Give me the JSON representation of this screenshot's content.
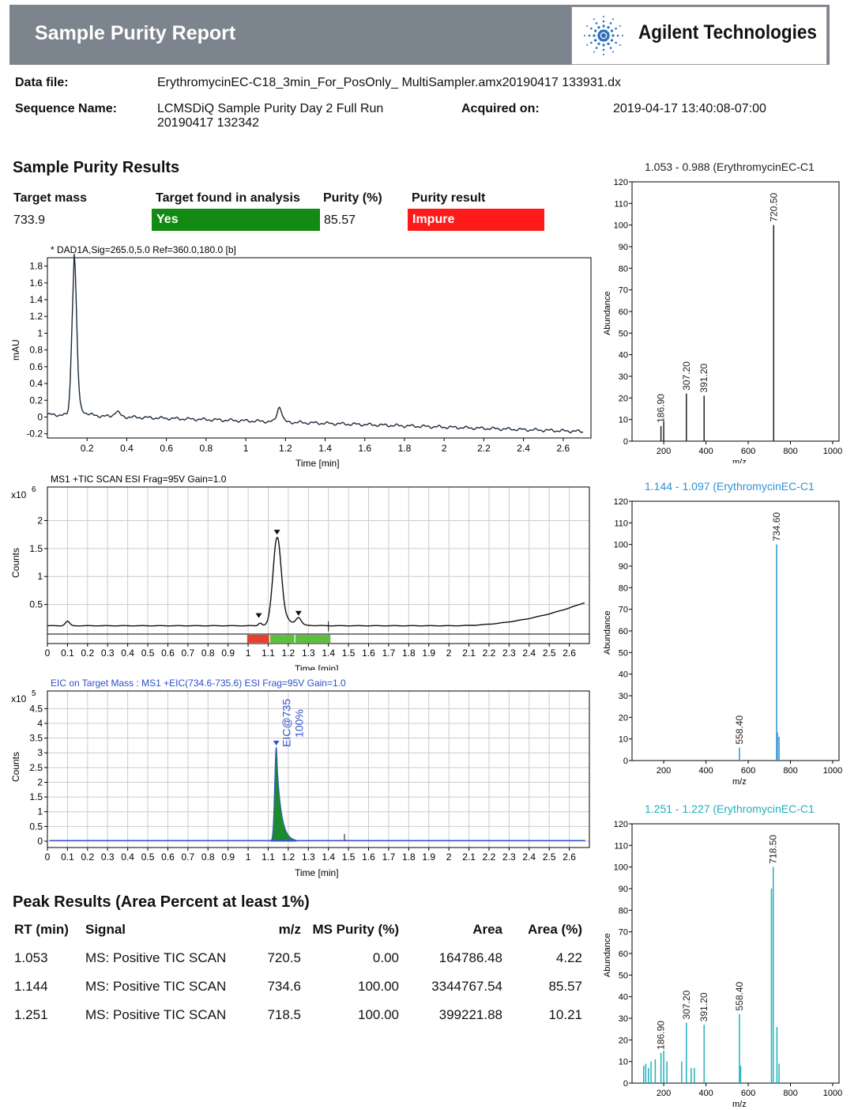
{
  "header": {
    "title": "Sample Purity Report",
    "brand": "Agilent Technologies",
    "brand_color": "#2a6ebb"
  },
  "info": {
    "data_file_label": "Data file:",
    "data_file": "ErythromycinEC-C18_3min_For_PosOnly_ MultiSampler.amx20190417 133931.dx",
    "sequence_label": "Sequence Name:",
    "sequence_line1": "LCMSDiQ Sample Purity Day 2 Full Run",
    "sequence_line2": "20190417 132342",
    "acquired_label": "Acquired on:",
    "acquired": "2019-04-17 13:40:08-07:00"
  },
  "results": {
    "heading": "Sample Purity Results",
    "target_mass_label": "Target mass",
    "target_mass": "733.9",
    "found_label": "Target found in analysis",
    "found": "Yes",
    "found_color": "#138a13",
    "purity_label": "Purity (%)",
    "purity": "85.57",
    "result_label": "Purity result",
    "result": "Impure",
    "result_color": "#ff1a1a"
  },
  "chromatograms": {
    "dad": {
      "title": "* DAD1A,Sig=265.0,5.0  Ref=360.0,180.0 [b]",
      "ylabel": "mAU",
      "xlabel": "Time [min]",
      "yticks": [
        "1.8",
        "1.6",
        "1.4",
        "1.2",
        "1",
        "0.8",
        "0.6",
        "0.4",
        "0.2",
        "0",
        "-0.2"
      ],
      "xticks": [
        "0.2",
        "0.4",
        "0.6",
        "0.8",
        "1",
        "1.2",
        "1.4",
        "1.6",
        "1.8",
        "2",
        "2.2",
        "2.4",
        "2.6"
      ]
    },
    "tic": {
      "title": "MS1 +TIC SCAN ESI Frag=95V Gain=1.0",
      "multiplier": "x10",
      "exponent": "6",
      "ylabel": "Counts",
      "xlabel": "Time [min]",
      "yticks": [
        "2",
        "1.5",
        "1",
        "0.5"
      ],
      "xticks": [
        "0",
        "0.1",
        "0.2",
        "0.3",
        "0.4",
        "0.5",
        "0.6",
        "0.7",
        "0.8",
        "0.9",
        "1",
        "1.1",
        "1.2",
        "1.3",
        "1.4",
        "1.5",
        "1.6",
        "1.7",
        "1.8",
        "1.9",
        "2",
        "2.1",
        "2.2",
        "2.3",
        "2.4",
        "2.5",
        "2.6"
      ]
    },
    "eic": {
      "title": "EIC on Target Mass : MS1 +EIC(734.6-735.6) ESI Frag=95V Gain=1.0",
      "title_color": "#2c4fd0",
      "multiplier": "x10",
      "exponent": "5",
      "ylabel": "Counts",
      "xlabel": "Time [min]",
      "peak_label_1": "EIC@735",
      "peak_label_2": "100%",
      "yticks": [
        "4.5",
        "4",
        "3.5",
        "3",
        "2.5",
        "2",
        "1.5",
        "1",
        "0.5",
        "0"
      ],
      "xticks": [
        "0",
        "0.1",
        "0.2",
        "0.3",
        "0.4",
        "0.5",
        "0.6",
        "0.7",
        "0.8",
        "0.9",
        "1",
        "1.1",
        "1.2",
        "1.3",
        "1.4",
        "1.5",
        "1.6",
        "1.7",
        "1.8",
        "1.9",
        "2",
        "2.1",
        "2.2",
        "2.3",
        "2.4",
        "2.5",
        "2.6"
      ]
    }
  },
  "spectra": [
    {
      "title": "1.053 - 0.988 (ErythromycinEC-C1",
      "color": "#222222",
      "ylabel": "Abundance",
      "xlabel": "m/z",
      "peaks": [
        {
          "mz": 186.9,
          "v": 7,
          "label": "186.90"
        },
        {
          "mz": 200,
          "v": 9,
          "label": ""
        },
        {
          "mz": 307.2,
          "v": 22,
          "label": "307.20"
        },
        {
          "mz": 391.2,
          "v": 21,
          "label": "391.20"
        },
        {
          "mz": 720.5,
          "v": 100,
          "label": "720.50"
        }
      ]
    },
    {
      "title": "1.144 - 1.097 (ErythromycinEC-C1",
      "color": "#2c93d6",
      "ylabel": "Abundance",
      "xlabel": "m/z",
      "peaks": [
        {
          "mz": 558.4,
          "v": 6,
          "label": "558.40"
        },
        {
          "mz": 734.6,
          "v": 100,
          "label": "734.60"
        },
        {
          "mz": 738,
          "v": 13,
          "label": ""
        },
        {
          "mz": 746,
          "v": 11,
          "label": ""
        }
      ]
    },
    {
      "title": "1.251 - 1.227 (ErythromycinEC-C1",
      "color": "#22b0b8",
      "ylabel": "Abundance",
      "xlabel": "m/z",
      "peaks": [
        {
          "mz": 105,
          "v": 8,
          "label": ""
        },
        {
          "mz": 115,
          "v": 9,
          "label": ""
        },
        {
          "mz": 128,
          "v": 7,
          "label": ""
        },
        {
          "mz": 140,
          "v": 10,
          "label": ""
        },
        {
          "mz": 160,
          "v": 11,
          "label": ""
        },
        {
          "mz": 186.9,
          "v": 14,
          "label": "186.90"
        },
        {
          "mz": 200,
          "v": 15,
          "label": ""
        },
        {
          "mz": 215,
          "v": 10,
          "label": ""
        },
        {
          "mz": 285,
          "v": 10,
          "label": ""
        },
        {
          "mz": 307.2,
          "v": 28,
          "label": "307.20"
        },
        {
          "mz": 330,
          "v": 7,
          "label": ""
        },
        {
          "mz": 345,
          "v": 7,
          "label": ""
        },
        {
          "mz": 391.2,
          "v": 27,
          "label": "391.20"
        },
        {
          "mz": 558.4,
          "v": 32,
          "label": "558.40"
        },
        {
          "mz": 564,
          "v": 8,
          "label": ""
        },
        {
          "mz": 710,
          "v": 90,
          "label": ""
        },
        {
          "mz": 718.5,
          "v": 100,
          "label": "718.50"
        },
        {
          "mz": 736,
          "v": 26,
          "label": ""
        },
        {
          "mz": 746,
          "v": 9,
          "label": ""
        }
      ]
    }
  ],
  "spectrum_axis": {
    "yticks": [
      "0",
      "10",
      "20",
      "30",
      "40",
      "50",
      "60",
      "70",
      "80",
      "90",
      "100",
      "110",
      "120"
    ],
    "xticks": [
      "200",
      "400",
      "600",
      "800",
      "1000"
    ]
  },
  "peak_results": {
    "heading": "Peak Results (Area Percent at least 1%)",
    "columns": [
      "RT (min)",
      "Signal",
      "m/z",
      "MS Purity (%)",
      "Area",
      "Area (%)"
    ],
    "rows": [
      [
        "1.053",
        "MS: Positive TIC SCAN",
        "720.5",
        "0.00",
        "164786.48",
        "4.22"
      ],
      [
        "1.144",
        "MS: Positive TIC SCAN",
        "734.6",
        "100.00",
        "3344767.54",
        "85.57"
      ],
      [
        "1.251",
        "MS: Positive TIC SCAN",
        "718.5",
        "100.00",
        "399221.88",
        "10.21"
      ]
    ]
  }
}
